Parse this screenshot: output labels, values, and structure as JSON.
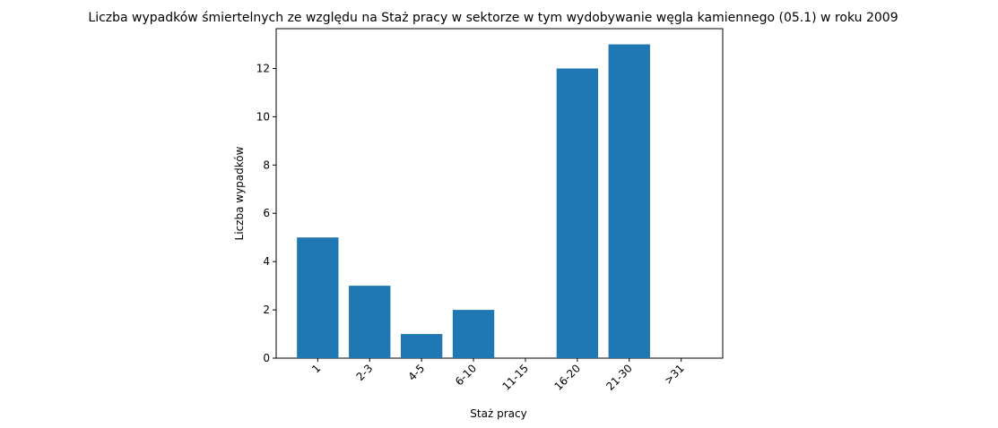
{
  "chart_data": {
    "type": "bar",
    "title": "Liczba wypadków śmiertelnych ze względu na Staż pracy w sektorze    w tym wydobywanie węgla kamiennego (05.1) w roku 2009",
    "xlabel": "Staż pracy",
    "ylabel": "Liczba wypadków",
    "categories": [
      "1",
      "2-3",
      "4-5",
      "6-10",
      "11-15",
      "16-20",
      "21-30",
      ">31"
    ],
    "values": [
      5,
      3,
      1,
      2,
      0,
      12,
      13,
      0
    ],
    "ylim": [
      0,
      13.65
    ],
    "yticks": [
      0,
      2,
      4,
      6,
      8,
      10,
      12
    ],
    "bar_color": "#1f77b4",
    "grid": false,
    "xtick_rotation": 45
  }
}
